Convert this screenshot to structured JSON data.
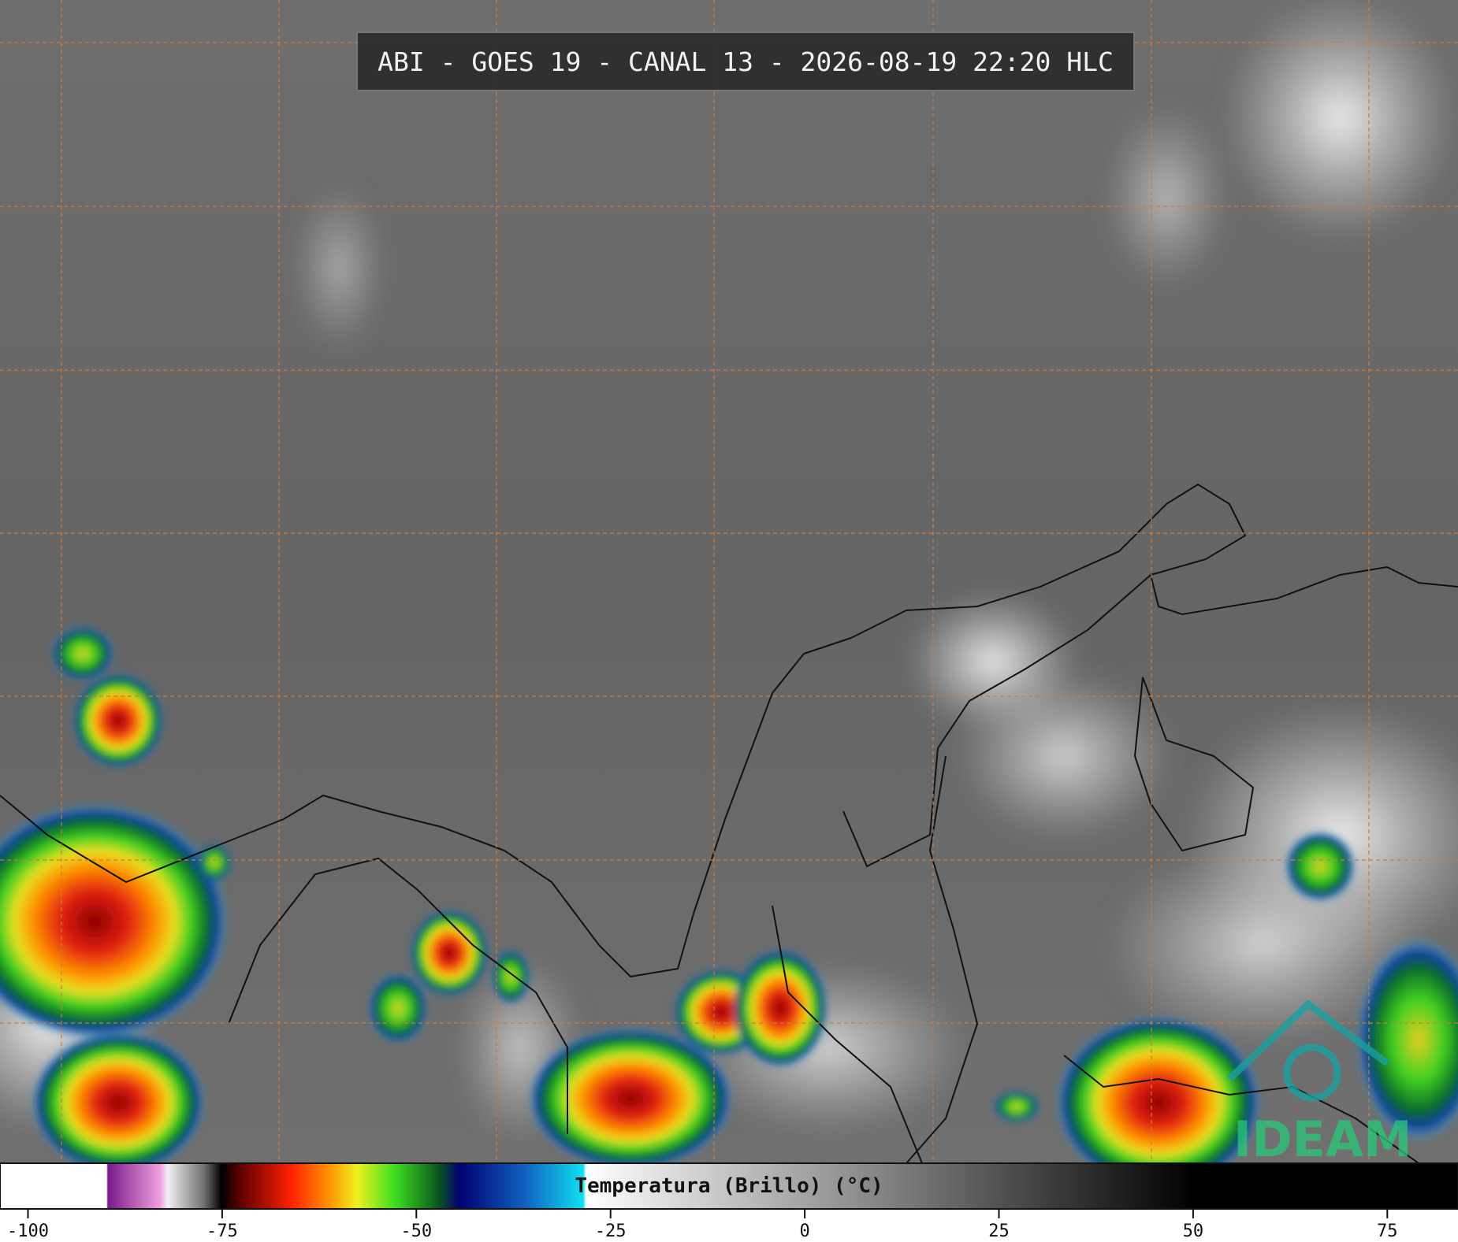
{
  "header": {
    "title": "ABI - GOES 19 - CANAL 13 - 2026-08-19 22:20 HLC"
  },
  "logo": {
    "text": "IDEAM"
  },
  "colorbar": {
    "label": "Temperatura (Brillo) (°C)",
    "range": [
      -103.6,
      84.1
    ],
    "ticks": [
      -100,
      -75,
      -50,
      -25,
      0,
      25,
      50,
      75
    ]
  }
}
